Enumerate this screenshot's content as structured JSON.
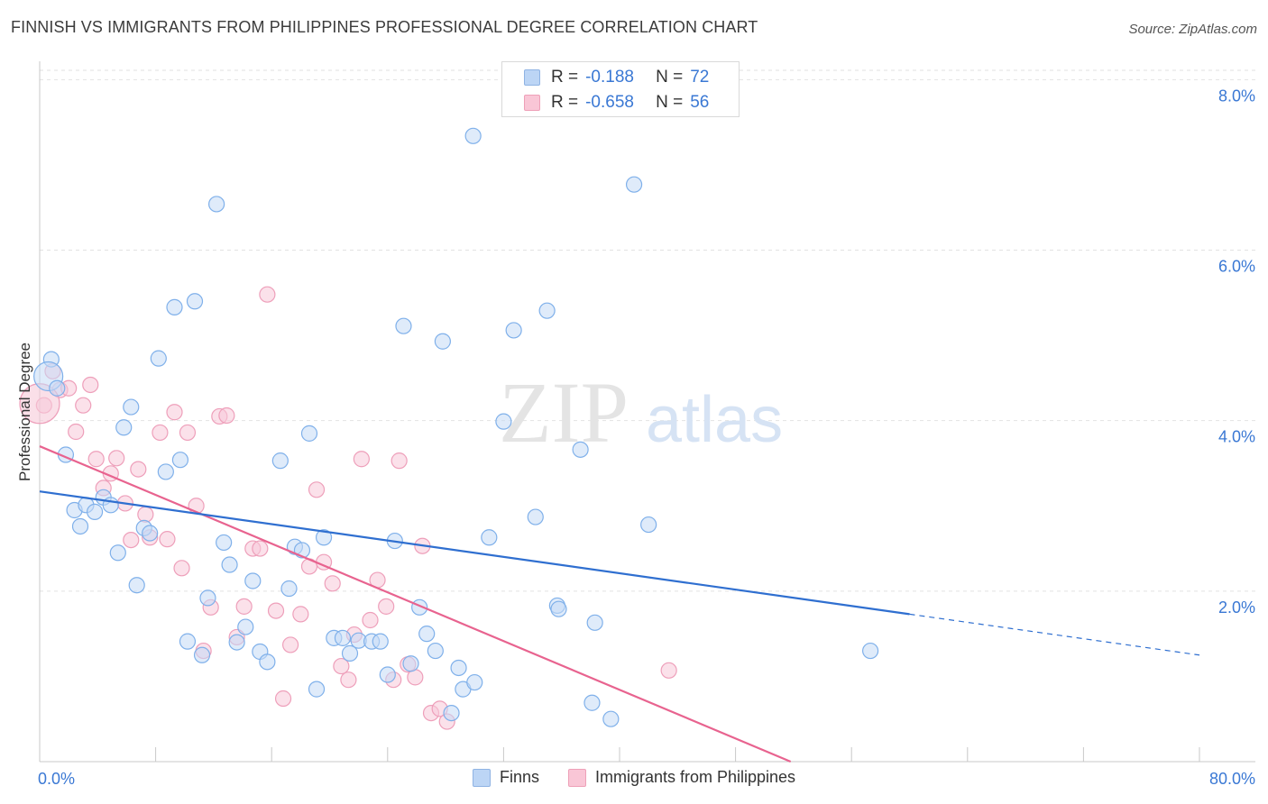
{
  "header": {
    "title": "FINNISH VS IMMIGRANTS FROM PHILIPPINES PROFESSIONAL DEGREE CORRELATION CHART",
    "source": "Source: ZipAtlas.com"
  },
  "watermark": {
    "zip": "ZIP",
    "atlas": "atlas"
  },
  "stats": {
    "finns": {
      "r_label": "R =",
      "r_value": "-0.188",
      "n_label": "N =",
      "n_value": "72",
      "color": "#bcd5f5"
    },
    "philippines": {
      "r_label": "R =",
      "r_value": "-0.658",
      "n_label": "N =",
      "n_value": "56",
      "color": "#f9c6d6"
    }
  },
  "legend": {
    "finns": "Finns",
    "philippines": "Immigrants from Philippines"
  },
  "chart_data": {
    "type": "scatter",
    "ylabel": "Professional Degree",
    "xlabel": "",
    "xlim": [
      0,
      80
    ],
    "ylim": [
      0,
      8.3
    ],
    "x_tick_labels": [
      {
        "value": 0,
        "label": "0.0%"
      },
      {
        "value": 80,
        "label": "80.0%"
      }
    ],
    "y_ticks": [
      {
        "value": 2,
        "label": "2.0%"
      },
      {
        "value": 4,
        "label": "4.0%"
      },
      {
        "value": 6,
        "label": "6.0%"
      },
      {
        "value": 8,
        "label": "8.0%"
      }
    ],
    "grid": true,
    "series": [
      {
        "name": "Finns",
        "color": "#7fb0ea",
        "fill": "#c5daf5",
        "trend": {
          "x0": 0,
          "y0": 3.17,
          "x1": 60,
          "y1": 1.73,
          "dash_to_x": 80,
          "dash_to_y": 1.25,
          "color": "#2f6fd0"
        },
        "points": [
          [
            0.8,
            4.72
          ],
          [
            0.6,
            4.52
          ],
          [
            1.2,
            4.38
          ],
          [
            1.8,
            3.6
          ],
          [
            2.4,
            2.95
          ],
          [
            2.8,
            2.76
          ],
          [
            3.2,
            3.01
          ],
          [
            3.8,
            2.93
          ],
          [
            4.4,
            3.1
          ],
          [
            4.9,
            3.01
          ],
          [
            5.4,
            2.45
          ],
          [
            5.8,
            3.92
          ],
          [
            6.3,
            4.16
          ],
          [
            6.7,
            2.07
          ],
          [
            7.2,
            2.74
          ],
          [
            7.6,
            2.68
          ],
          [
            8.2,
            4.73
          ],
          [
            8.7,
            3.4
          ],
          [
            9.3,
            5.33
          ],
          [
            9.7,
            3.54
          ],
          [
            10.2,
            1.41
          ],
          [
            10.7,
            5.4
          ],
          [
            11.2,
            1.25
          ],
          [
            11.6,
            1.92
          ],
          [
            12.2,
            6.54
          ],
          [
            12.7,
            2.57
          ],
          [
            13.1,
            2.31
          ],
          [
            13.6,
            1.4
          ],
          [
            14.2,
            1.58
          ],
          [
            14.7,
            2.12
          ],
          [
            15.2,
            1.29
          ],
          [
            15.7,
            1.17
          ],
          [
            16.6,
            3.53
          ],
          [
            17.2,
            2.03
          ],
          [
            17.6,
            2.52
          ],
          [
            18.1,
            2.48
          ],
          [
            18.6,
            3.85
          ],
          [
            19.1,
            0.85
          ],
          [
            19.6,
            2.63
          ],
          [
            20.3,
            1.45
          ],
          [
            20.9,
            1.45
          ],
          [
            21.4,
            1.27
          ],
          [
            22.0,
            1.42
          ],
          [
            22.9,
            1.41
          ],
          [
            23.5,
            1.41
          ],
          [
            24.0,
            1.02
          ],
          [
            24.5,
            2.59
          ],
          [
            25.1,
            5.11
          ],
          [
            25.6,
            1.15
          ],
          [
            26.2,
            1.81
          ],
          [
            26.7,
            1.5
          ],
          [
            27.3,
            1.3
          ],
          [
            27.8,
            4.93
          ],
          [
            28.4,
            0.57
          ],
          [
            28.9,
            1.1
          ],
          [
            29.2,
            0.85
          ],
          [
            30.0,
            0.93
          ],
          [
            29.9,
            7.34
          ],
          [
            31.0,
            2.63
          ],
          [
            32.0,
            3.99
          ],
          [
            32.7,
            5.06
          ],
          [
            34.2,
            2.87
          ],
          [
            35.0,
            5.29
          ],
          [
            35.7,
            1.83
          ],
          [
            35.8,
            1.79
          ],
          [
            37.3,
            3.66
          ],
          [
            38.1,
            0.69
          ],
          [
            38.3,
            1.63
          ],
          [
            39.4,
            0.5
          ],
          [
            41.0,
            6.77
          ],
          [
            42.0,
            2.78
          ],
          [
            57.3,
            1.3
          ]
        ]
      },
      {
        "name": "Immigrants from Philippines",
        "color": "#ee9fba",
        "fill": "#f7c9d8",
        "trend": {
          "x0": 0,
          "y0": 3.7,
          "x1": 51.8,
          "y1": 0.0,
          "color": "#e8638f"
        },
        "points": [
          [
            0.3,
            4.18
          ],
          [
            0.9,
            4.58
          ],
          [
            1.4,
            4.36
          ],
          [
            2.0,
            4.38
          ],
          [
            2.5,
            3.87
          ],
          [
            3.0,
            4.18
          ],
          [
            3.5,
            4.42
          ],
          [
            3.9,
            3.55
          ],
          [
            4.4,
            3.21
          ],
          [
            4.9,
            3.38
          ],
          [
            5.3,
            3.56
          ],
          [
            5.9,
            3.03
          ],
          [
            6.3,
            2.6
          ],
          [
            6.8,
            3.43
          ],
          [
            7.3,
            2.9
          ],
          [
            7.6,
            2.63
          ],
          [
            8.3,
            3.86
          ],
          [
            8.8,
            2.61
          ],
          [
            9.3,
            4.1
          ],
          [
            9.8,
            2.27
          ],
          [
            10.2,
            3.86
          ],
          [
            10.8,
            3.0
          ],
          [
            11.3,
            1.3
          ],
          [
            11.8,
            1.81
          ],
          [
            12.4,
            4.05
          ],
          [
            12.9,
            4.06
          ],
          [
            13.6,
            1.46
          ],
          [
            14.1,
            1.82
          ],
          [
            14.7,
            2.5
          ],
          [
            15.2,
            2.5
          ],
          [
            15.7,
            5.48
          ],
          [
            16.3,
            1.77
          ],
          [
            16.8,
            0.74
          ],
          [
            17.3,
            1.37
          ],
          [
            18.0,
            1.73
          ],
          [
            18.6,
            2.29
          ],
          [
            19.1,
            3.19
          ],
          [
            19.6,
            2.34
          ],
          [
            20.2,
            2.09
          ],
          [
            20.8,
            1.12
          ],
          [
            21.3,
            0.96
          ],
          [
            21.7,
            1.49
          ],
          [
            22.2,
            3.55
          ],
          [
            22.8,
            1.66
          ],
          [
            23.3,
            2.13
          ],
          [
            23.9,
            1.82
          ],
          [
            24.4,
            0.96
          ],
          [
            24.8,
            3.53
          ],
          [
            25.4,
            1.14
          ],
          [
            25.9,
            0.99
          ],
          [
            26.4,
            2.53
          ],
          [
            27.0,
            0.57
          ],
          [
            27.6,
            0.62
          ],
          [
            28.1,
            0.47
          ],
          [
            43.4,
            1.07
          ],
          [
            0.0,
            4.2
          ]
        ]
      }
    ]
  }
}
